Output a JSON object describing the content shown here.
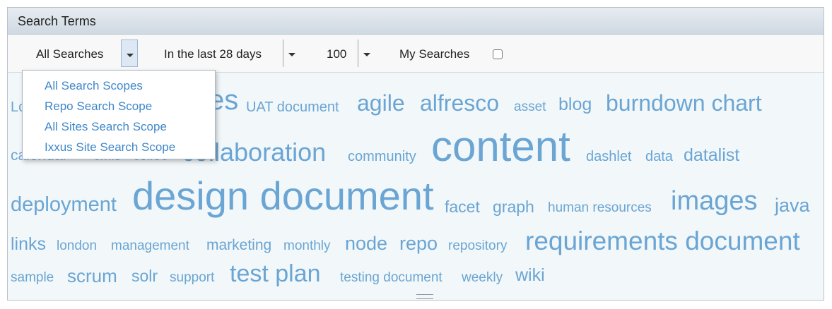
{
  "header": {
    "title": "Search Terms"
  },
  "toolbar": {
    "scope_label": "All Searches",
    "period_label": "In the last 28 days",
    "count_label": "100",
    "my_searches_label": "My Searches"
  },
  "dropdown": {
    "items": [
      "All Search Scopes",
      "Repo Search Scope",
      "All Sites Search Scope",
      "Ixxus Site Search Scope"
    ]
  },
  "cloud": {
    "color": "#6aa5d3",
    "terms": [
      {
        "text": "Lo"
      },
      {
        "text": "es"
      },
      {
        "text": "UAT document"
      },
      {
        "text": "agile"
      },
      {
        "text": "alfresco"
      },
      {
        "text": "asset"
      },
      {
        "text": "blog"
      },
      {
        "text": "burndown chart"
      },
      {
        "text": "calendar"
      },
      {
        "text": "cmis"
      },
      {
        "text": "collee"
      },
      {
        "text": "collaboration"
      },
      {
        "text": "community"
      },
      {
        "text": "content"
      },
      {
        "text": "dashlet"
      },
      {
        "text": "data"
      },
      {
        "text": "datalist"
      },
      {
        "text": "deployment"
      },
      {
        "text": "design document"
      },
      {
        "text": "facet"
      },
      {
        "text": "graph"
      },
      {
        "text": "human resources"
      },
      {
        "text": "images"
      },
      {
        "text": "java"
      },
      {
        "text": "links"
      },
      {
        "text": "london"
      },
      {
        "text": "management"
      },
      {
        "text": "marketing"
      },
      {
        "text": "monthly"
      },
      {
        "text": "node"
      },
      {
        "text": "repo"
      },
      {
        "text": "repository"
      },
      {
        "text": "requirements document"
      },
      {
        "text": "sample"
      },
      {
        "text": "scrum"
      },
      {
        "text": "solr"
      },
      {
        "text": "support"
      },
      {
        "text": "test plan"
      },
      {
        "text": "testing document"
      },
      {
        "text": "weekly"
      },
      {
        "text": "wiki"
      }
    ]
  }
}
